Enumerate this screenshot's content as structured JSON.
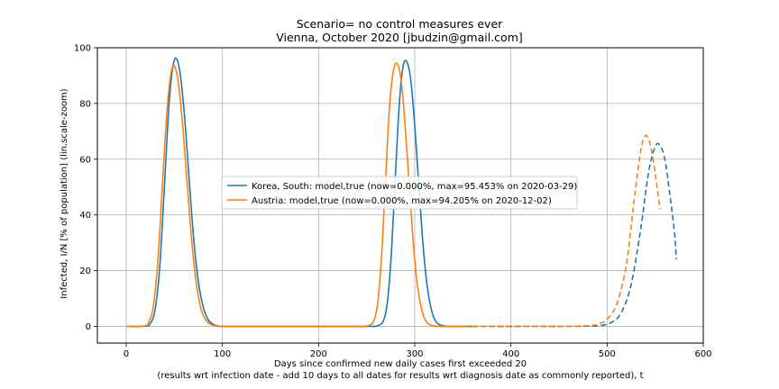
{
  "chart_data": {
    "type": "line",
    "title": "Scenario= no control measures ever",
    "subtitle": "Vienna, October 2020 [jbudzin@gmail.com]",
    "xlabel_line1": "Days since confirmed new daily cases first exceeded 20",
    "xlabel_line2": "(results wrt infection date - add 10 days to all dates for results wrt diagnosis date as commonly reported), t",
    "ylabel": "Infected, I/N [% of population] (lin.scale-zoom)",
    "xlim": [
      -30,
      600
    ],
    "ylim": [
      -6,
      100
    ],
    "xticks": [
      0,
      100,
      200,
      300,
      400,
      500,
      600
    ],
    "yticks": [
      0,
      20,
      40,
      60,
      80,
      100
    ],
    "grid": true,
    "legend_position": "center-left",
    "series": [
      {
        "name": "Korea, South: model,true (now=0.000%, max=95.453% on 2020-03-29)",
        "color": "#1f77b4",
        "solid": {
          "x": [
            0,
            20,
            25,
            30,
            35,
            40,
            45,
            50,
            55,
            60,
            65,
            70,
            75,
            80,
            85,
            90,
            95,
            100,
            120,
            200,
            250,
            262,
            268,
            272,
            276,
            280,
            284,
            288,
            292,
            296,
            300,
            304,
            308,
            312,
            316,
            320,
            324,
            330,
            340,
            360
          ],
          "y": [
            0,
            0.1,
            1,
            6,
            22,
            52,
            82,
            95.5,
            93,
            78,
            55,
            32,
            16,
            7,
            2.5,
            0.8,
            0.2,
            0.05,
            0,
            0,
            0,
            0.3,
            2.5,
            10,
            28,
            55,
            80,
            93.5,
            94.8,
            88,
            72,
            52,
            32,
            17,
            8,
            3,
            1,
            0.2,
            0,
            0
          ]
        },
        "dashed": {
          "x": [
            360,
            400,
            450,
            480,
            495,
            505,
            515,
            525,
            535,
            543,
            550,
            555,
            560,
            565,
            570,
            572
          ],
          "y": [
            0,
            0,
            0,
            0.1,
            0.4,
            1.5,
            5,
            15,
            35,
            55,
            64.5,
            65,
            60,
            48,
            34,
            24
          ]
        }
      },
      {
        "name": "Austria: model,true (now=0.000%, max=94.205% on 2020-12-02)",
        "color": "#ff7f0e",
        "solid": {
          "x": [
            0,
            18,
            23,
            28,
            33,
            38,
            43,
            48,
            53,
            58,
            63,
            68,
            73,
            78,
            83,
            88,
            93,
            100,
            120,
            200,
            240,
            252,
            258,
            262,
            266,
            270,
            274,
            278,
            282,
            286,
            290,
            294,
            298,
            302,
            306,
            310,
            314,
            320,
            330,
            350
          ],
          "y": [
            0,
            0.1,
            1.2,
            7,
            24,
            53,
            80,
            93,
            90,
            75,
            53,
            31,
            15,
            6,
            2.2,
            0.7,
            0.2,
            0.03,
            0,
            0,
            0,
            0.3,
            2.5,
            10,
            28,
            55,
            80,
            92,
            94.2,
            88,
            72,
            52,
            32,
            17,
            8,
            3,
            1,
            0.2,
            0,
            0
          ]
        },
        "dashed": {
          "x": [
            350,
            400,
            450,
            480,
            490,
            500,
            510,
            520,
            528,
            535,
            540,
            545,
            550,
            555
          ],
          "y": [
            0,
            0,
            0,
            0.2,
            0.8,
            2.5,
            8,
            22,
            45,
            63,
            68.5,
            65,
            55,
            42
          ]
        }
      }
    ]
  }
}
